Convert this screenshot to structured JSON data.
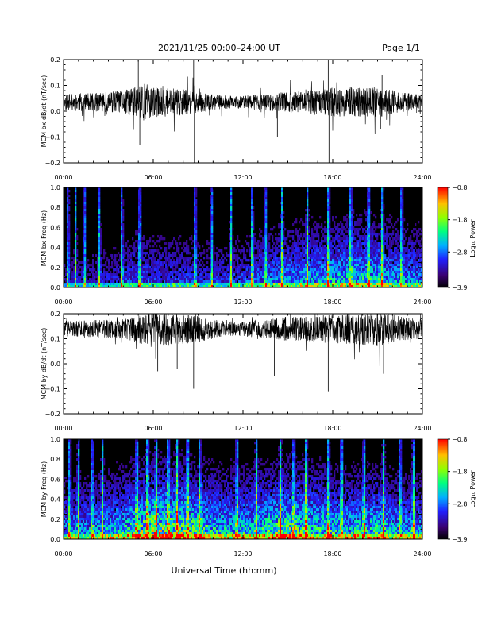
{
  "header": {
    "date_range": "2021/11/25  00:00–24:00 UT",
    "page_label": "Page 1/1"
  },
  "x_axis": {
    "label": "Universal Time (hh:mm)",
    "tick_labels": [
      "00:00",
      "06:00",
      "12:00",
      "18:00",
      "24:00"
    ],
    "range_hours": [
      0,
      24
    ]
  },
  "colors": {
    "spectrogram_background": "#000000",
    "trace": "#000000"
  },
  "chart_data": [
    {
      "type": "line",
      "ylabel": "MCM bx dB/dt (nT/sec)",
      "ylim": [
        -0.2,
        0.2
      ],
      "y_tick_labels": [
        "0.2",
        "0.1",
        "0.0",
        "−0.1",
        "−0.2"
      ],
      "y_ticks": [
        0.2,
        0.1,
        0.0,
        -0.1,
        -0.2
      ],
      "baseline": 0.035,
      "noise_envelope": [
        [
          0,
          0.03
        ],
        [
          1,
          0.035
        ],
        [
          2,
          0.035
        ],
        [
          3,
          0.04
        ],
        [
          4,
          0.045
        ],
        [
          4.8,
          0.07
        ],
        [
          5.2,
          0.08
        ],
        [
          6,
          0.06
        ],
        [
          7,
          0.055
        ],
        [
          8,
          0.05
        ],
        [
          9,
          0.04
        ],
        [
          10,
          0.03
        ],
        [
          11,
          0.025
        ],
        [
          12,
          0.025
        ],
        [
          13,
          0.03
        ],
        [
          14,
          0.035
        ],
        [
          15,
          0.04
        ],
        [
          16,
          0.045
        ],
        [
          17,
          0.05
        ],
        [
          18,
          0.055
        ],
        [
          19,
          0.06
        ],
        [
          20,
          0.055
        ],
        [
          21,
          0.06
        ],
        [
          22,
          0.045
        ],
        [
          23,
          0.035
        ],
        [
          24,
          0.03
        ]
      ],
      "spikes": [
        {
          "t": 5.0,
          "v": 0.21
        },
        {
          "t": 5.1,
          "v": -0.13
        },
        {
          "t": 8.7,
          "v": 0.21
        },
        {
          "t": 8.75,
          "v": -0.2
        },
        {
          "t": 14.3,
          "v": -0.1
        },
        {
          "t": 17.7,
          "v": 0.2
        },
        {
          "t": 17.75,
          "v": -0.2
        },
        {
          "t": 21.3,
          "v": 0.14
        },
        {
          "t": 21.2,
          "v": -0.07
        }
      ]
    },
    {
      "type": "heatmap",
      "ylabel": "MCM bx Freq (Hz)",
      "ylim": [
        0,
        1
      ],
      "y_tick_labels": [
        "1.0",
        "0.8",
        "0.6",
        "0.4",
        "0.2",
        "0.0"
      ],
      "y_ticks": [
        1.0,
        0.8,
        0.6,
        0.4,
        0.2,
        0.0
      ],
      "colorbar": {
        "label": "Log₁₀ Power",
        "range": [
          -3.9,
          -0.8
        ],
        "tick_labels": [
          "−0.8",
          "−1.8",
          "−2.8",
          "−3.9"
        ],
        "ticks": [
          -0.8,
          -1.8,
          -2.8,
          -3.9
        ]
      },
      "activity": [
        [
          0,
          0.2
        ],
        [
          2,
          0.25
        ],
        [
          4,
          0.3
        ],
        [
          5,
          0.4
        ],
        [
          6,
          0.35
        ],
        [
          8,
          0.35
        ],
        [
          10,
          0.3
        ],
        [
          12,
          0.35
        ],
        [
          14,
          0.45
        ],
        [
          16,
          0.5
        ],
        [
          17.5,
          0.55
        ],
        [
          19,
          0.6
        ],
        [
          21,
          0.6
        ],
        [
          22,
          0.5
        ],
        [
          24,
          0.45
        ]
      ],
      "bursts": [
        0.3,
        0.8,
        1.4,
        2.4,
        3.9,
        5.1,
        8.8,
        9.9,
        11.2,
        12.6,
        13.5,
        14.6,
        16.3,
        17.7,
        19.2,
        20.4,
        21.3,
        22.6
      ]
    },
    {
      "type": "line",
      "ylabel": "MCM by dB/dt (nT/sec)",
      "ylim": [
        -0.2,
        0.2
      ],
      "y_tick_labels": [
        "0.2",
        "0.1",
        "0.0",
        "−0.1",
        "−0.2"
      ],
      "y_ticks": [
        0.2,
        0.1,
        0.0,
        -0.1,
        -0.2
      ],
      "baseline": 0.14,
      "noise_envelope": [
        [
          0,
          0.03
        ],
        [
          2,
          0.035
        ],
        [
          4,
          0.04
        ],
        [
          5,
          0.06
        ],
        [
          6,
          0.065
        ],
        [
          7,
          0.07
        ],
        [
          8,
          0.06
        ],
        [
          9,
          0.055
        ],
        [
          10,
          0.04
        ],
        [
          11,
          0.03
        ],
        [
          12,
          0.03
        ],
        [
          13,
          0.035
        ],
        [
          14,
          0.04
        ],
        [
          15,
          0.05
        ],
        [
          16,
          0.05
        ],
        [
          17,
          0.055
        ],
        [
          18,
          0.06
        ],
        [
          19,
          0.06
        ],
        [
          20,
          0.065
        ],
        [
          21,
          0.07
        ],
        [
          22,
          0.06
        ],
        [
          23,
          0.045
        ],
        [
          24,
          0.035
        ]
      ],
      "spikes": [
        {
          "t": 8.7,
          "v": -0.1
        },
        {
          "t": 17.7,
          "v": -0.11
        },
        {
          "t": 7.6,
          "v": -0.02
        },
        {
          "t": 14.1,
          "v": -0.05
        },
        {
          "t": 21.4,
          "v": -0.04
        },
        {
          "t": 6.3,
          "v": -0.03
        }
      ]
    },
    {
      "type": "heatmap",
      "ylabel": "MCM by Freq (Hz)",
      "ylim": [
        0,
        1
      ],
      "y_tick_labels": [
        "1.0",
        "0.8",
        "0.6",
        "0.4",
        "0.2",
        "0.0"
      ],
      "y_ticks": [
        1.0,
        0.8,
        0.6,
        0.4,
        0.2,
        0.0
      ],
      "colorbar": {
        "label": "Log₁₀ Power",
        "range": [
          -3.9,
          -0.8
        ],
        "tick_labels": [
          "−0.8",
          "−1.8",
          "−2.8",
          "−3.9"
        ],
        "ticks": [
          -0.8,
          -1.8,
          -2.8,
          -3.9
        ]
      },
      "activity": [
        [
          0,
          0.45
        ],
        [
          2,
          0.5
        ],
        [
          4,
          0.6
        ],
        [
          5,
          0.75
        ],
        [
          6,
          0.85
        ],
        [
          8,
          0.8
        ],
        [
          10,
          0.65
        ],
        [
          12,
          0.6
        ],
        [
          14,
          0.7
        ],
        [
          15,
          0.75
        ],
        [
          16,
          0.7
        ],
        [
          17.5,
          0.65
        ],
        [
          19,
          0.6
        ],
        [
          21,
          0.65
        ],
        [
          22,
          0.55
        ],
        [
          24,
          0.5
        ]
      ],
      "bursts": [
        0.4,
        1.0,
        1.9,
        2.6,
        4.9,
        5.6,
        6.2,
        7.0,
        7.6,
        8.3,
        9.1,
        11.6,
        12.9,
        14.5,
        15.4,
        16.2,
        17.7,
        18.6,
        20.1,
        21.4,
        22.5,
        23.4
      ]
    }
  ]
}
